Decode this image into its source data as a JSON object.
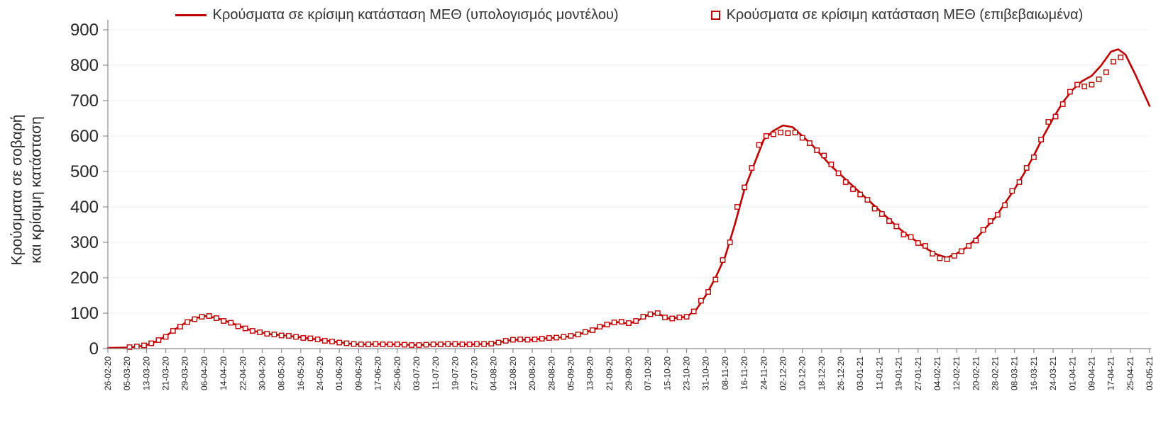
{
  "legend": {
    "model_label": "Κρούσματα σε κρίσιμη κατάσταση ΜΕΘ (υπολογισμός μοντέλου)",
    "confirmed_label": "Κρούσματα σε κρίσιμη κατάσταση ΜΕΘ (επιβεβαιωμένα)"
  },
  "y_axis_title_line1": "Κρούσματα σε σοβαρή",
  "y_axis_title_line2": "και κρίσιμη κατάσταση",
  "colors": {
    "model_line": "#c00000",
    "confirmed_marker": "#c00000",
    "axis": "#8c8c8c",
    "grid": "#ececec",
    "text": "#262626"
  },
  "chart_data": {
    "type": "line",
    "title": "",
    "xlabel": "",
    "ylabel": "Κρούσματα σε σοβαρή και κρίσιμη κατάσταση",
    "xlim": [
      0,
      432
    ],
    "ylim": [
      0,
      900
    ],
    "x_unit": "days since 26-02-20",
    "x_tick_interval_days": 8,
    "grid": "horizontal",
    "legend_position": "top",
    "y_ticks": [
      0,
      100,
      200,
      300,
      400,
      500,
      600,
      700,
      800,
      900
    ],
    "x_tick_labels": [
      "26-02-20",
      "05-03-20",
      "13-03-20",
      "21-03-20",
      "29-03-20",
      "06-04-20",
      "14-04-20",
      "22-04-20",
      "30-04-20",
      "08-05-20",
      "16-05-20",
      "24-05-20",
      "01-06-20",
      "09-06-20",
      "17-06-20",
      "25-06-20",
      "03-07-20",
      "11-07-20",
      "19-07-20",
      "27-07-20",
      "04-08-20",
      "12-08-20",
      "20-08-20",
      "28-08-20",
      "05-09-20",
      "13-09-20",
      "21-09-20",
      "29-09-20",
      "07-10-20",
      "15-10-20",
      "23-10-20",
      "31-10-20",
      "08-11-20",
      "16-11-20",
      "24-11-20",
      "02-12-20",
      "10-12-20",
      "18-12-20",
      "26-12-20",
      "03-01-21",
      "11-01-21",
      "19-01-21",
      "27-01-21",
      "04-02-21",
      "12-02-21",
      "20-02-21",
      "28-02-21",
      "08-03-21",
      "16-03-21",
      "24-03-21",
      "01-04-21",
      "09-04-21",
      "17-04-21",
      "25-04-21",
      "03-05-21"
    ],
    "series": [
      {
        "name": "Κρούσματα σε κρίσιμη κατάσταση ΜΕΘ (υπολογισμός μοντέλου)",
        "type": "line",
        "color": "#c00000",
        "points": [
          [
            0,
            2
          ],
          [
            8,
            3
          ],
          [
            12,
            5
          ],
          [
            16,
            10
          ],
          [
            20,
            20
          ],
          [
            24,
            35
          ],
          [
            28,
            55
          ],
          [
            32,
            72
          ],
          [
            36,
            85
          ],
          [
            40,
            92
          ],
          [
            44,
            88
          ],
          [
            48,
            80
          ],
          [
            52,
            70
          ],
          [
            56,
            60
          ],
          [
            60,
            50
          ],
          [
            64,
            45
          ],
          [
            68,
            40
          ],
          [
            72,
            38
          ],
          [
            76,
            35
          ],
          [
            80,
            32
          ],
          [
            84,
            28
          ],
          [
            88,
            25
          ],
          [
            92,
            21
          ],
          [
            96,
            18
          ],
          [
            100,
            14
          ],
          [
            104,
            12
          ],
          [
            108,
            12
          ],
          [
            112,
            13
          ],
          [
            116,
            12
          ],
          [
            120,
            12
          ],
          [
            124,
            11
          ],
          [
            128,
            10
          ],
          [
            132,
            11
          ],
          [
            136,
            12
          ],
          [
            140,
            13
          ],
          [
            144,
            13
          ],
          [
            148,
            12
          ],
          [
            152,
            12
          ],
          [
            156,
            13
          ],
          [
            160,
            15
          ],
          [
            164,
            20
          ],
          [
            168,
            25
          ],
          [
            172,
            25
          ],
          [
            176,
            25
          ],
          [
            180,
            28
          ],
          [
            184,
            30
          ],
          [
            188,
            32
          ],
          [
            192,
            35
          ],
          [
            196,
            42
          ],
          [
            200,
            50
          ],
          [
            204,
            60
          ],
          [
            208,
            70
          ],
          [
            212,
            75
          ],
          [
            216,
            70
          ],
          [
            220,
            80
          ],
          [
            224,
            95
          ],
          [
            228,
            100
          ],
          [
            232,
            85
          ],
          [
            236,
            87
          ],
          [
            240,
            90
          ],
          [
            244,
            110
          ],
          [
            248,
            150
          ],
          [
            252,
            200
          ],
          [
            256,
            260
          ],
          [
            260,
            350
          ],
          [
            264,
            450
          ],
          [
            268,
            520
          ],
          [
            272,
            590
          ],
          [
            276,
            615
          ],
          [
            280,
            630
          ],
          [
            284,
            625
          ],
          [
            288,
            600
          ],
          [
            292,
            575
          ],
          [
            296,
            545
          ],
          [
            300,
            515
          ],
          [
            304,
            490
          ],
          [
            308,
            465
          ],
          [
            312,
            440
          ],
          [
            316,
            415
          ],
          [
            320,
            390
          ],
          [
            324,
            365
          ],
          [
            328,
            340
          ],
          [
            332,
            318
          ],
          [
            336,
            300
          ],
          [
            340,
            280
          ],
          [
            344,
            265
          ],
          [
            348,
            257
          ],
          [
            352,
            268
          ],
          [
            356,
            285
          ],
          [
            360,
            310
          ],
          [
            364,
            340
          ],
          [
            368,
            370
          ],
          [
            372,
            410
          ],
          [
            376,
            450
          ],
          [
            380,
            495
          ],
          [
            384,
            545
          ],
          [
            388,
            600
          ],
          [
            392,
            650
          ],
          [
            396,
            695
          ],
          [
            400,
            730
          ],
          [
            404,
            755
          ],
          [
            408,
            770
          ],
          [
            412,
            800
          ],
          [
            416,
            838
          ],
          [
            419,
            845
          ],
          [
            422,
            830
          ],
          [
            426,
            775
          ],
          [
            432,
            685
          ]
        ]
      },
      {
        "name": "Κρούσματα σε κρίσιμη κατάσταση ΜΕΘ (επιβεβαιωμένα)",
        "type": "scatter",
        "marker": "open-square",
        "color": "#c00000",
        "points": [
          [
            9,
            4
          ],
          [
            12,
            6
          ],
          [
            15,
            9
          ],
          [
            18,
            15
          ],
          [
            21,
            24
          ],
          [
            24,
            33
          ],
          [
            27,
            50
          ],
          [
            30,
            62
          ],
          [
            33,
            75
          ],
          [
            36,
            83
          ],
          [
            39,
            90
          ],
          [
            42,
            92
          ],
          [
            45,
            86
          ],
          [
            48,
            78
          ],
          [
            51,
            73
          ],
          [
            54,
            63
          ],
          [
            57,
            57
          ],
          [
            60,
            50
          ],
          [
            63,
            46
          ],
          [
            66,
            42
          ],
          [
            69,
            40
          ],
          [
            72,
            37
          ],
          [
            75,
            36
          ],
          [
            78,
            33
          ],
          [
            81,
            30
          ],
          [
            84,
            29
          ],
          [
            87,
            26
          ],
          [
            90,
            22
          ],
          [
            93,
            20
          ],
          [
            96,
            17
          ],
          [
            99,
            15
          ],
          [
            102,
            13
          ],
          [
            105,
            12
          ],
          [
            108,
            12
          ],
          [
            111,
            13
          ],
          [
            114,
            12
          ],
          [
            117,
            12
          ],
          [
            120,
            12
          ],
          [
            123,
            11
          ],
          [
            126,
            10
          ],
          [
            129,
            10
          ],
          [
            132,
            11
          ],
          [
            135,
            12
          ],
          [
            138,
            12
          ],
          [
            141,
            13
          ],
          [
            144,
            13
          ],
          [
            147,
            12
          ],
          [
            150,
            12
          ],
          [
            153,
            13
          ],
          [
            156,
            13
          ],
          [
            159,
            14
          ],
          [
            162,
            17
          ],
          [
            165,
            22
          ],
          [
            168,
            25
          ],
          [
            171,
            26
          ],
          [
            174,
            25
          ],
          [
            177,
            26
          ],
          [
            180,
            28
          ],
          [
            183,
            30
          ],
          [
            186,
            31
          ],
          [
            189,
            33
          ],
          [
            192,
            36
          ],
          [
            195,
            40
          ],
          [
            198,
            47
          ],
          [
            201,
            52
          ],
          [
            204,
            62
          ],
          [
            207,
            68
          ],
          [
            210,
            74
          ],
          [
            213,
            76
          ],
          [
            216,
            72
          ],
          [
            219,
            78
          ],
          [
            222,
            90
          ],
          [
            225,
            97
          ],
          [
            228,
            100
          ],
          [
            231,
            88
          ],
          [
            234,
            85
          ],
          [
            237,
            88
          ],
          [
            240,
            90
          ],
          [
            243,
            105
          ],
          [
            246,
            135
          ],
          [
            249,
            160
          ],
          [
            252,
            195
          ],
          [
            255,
            250
          ],
          [
            258,
            300
          ],
          [
            261,
            400
          ],
          [
            264,
            455
          ],
          [
            267,
            510
          ],
          [
            270,
            575
          ],
          [
            273,
            600
          ],
          [
            276,
            605
          ],
          [
            279,
            610
          ],
          [
            282,
            608
          ],
          [
            285,
            610
          ],
          [
            288,
            595
          ],
          [
            291,
            580
          ],
          [
            294,
            560
          ],
          [
            297,
            545
          ],
          [
            300,
            520
          ],
          [
            303,
            495
          ],
          [
            306,
            470
          ],
          [
            309,
            450
          ],
          [
            312,
            435
          ],
          [
            315,
            420
          ],
          [
            318,
            395
          ],
          [
            321,
            380
          ],
          [
            324,
            360
          ],
          [
            327,
            345
          ],
          [
            330,
            322
          ],
          [
            333,
            315
          ],
          [
            336,
            298
          ],
          [
            339,
            290
          ],
          [
            342,
            268
          ],
          [
            345,
            255
          ],
          [
            348,
            252
          ],
          [
            351,
            262
          ],
          [
            354,
            275
          ],
          [
            357,
            290
          ],
          [
            360,
            305
          ],
          [
            363,
            335
          ],
          [
            366,
            360
          ],
          [
            369,
            378
          ],
          [
            372,
            405
          ],
          [
            375,
            445
          ],
          [
            378,
            470
          ],
          [
            381,
            510
          ],
          [
            384,
            540
          ],
          [
            387,
            590
          ],
          [
            390,
            640
          ],
          [
            393,
            655
          ],
          [
            396,
            690
          ],
          [
            399,
            725
          ],
          [
            402,
            745
          ],
          [
            405,
            740
          ],
          [
            408,
            745
          ],
          [
            411,
            760
          ],
          [
            414,
            780
          ],
          [
            417,
            810
          ],
          [
            420,
            822
          ]
        ]
      }
    ]
  }
}
